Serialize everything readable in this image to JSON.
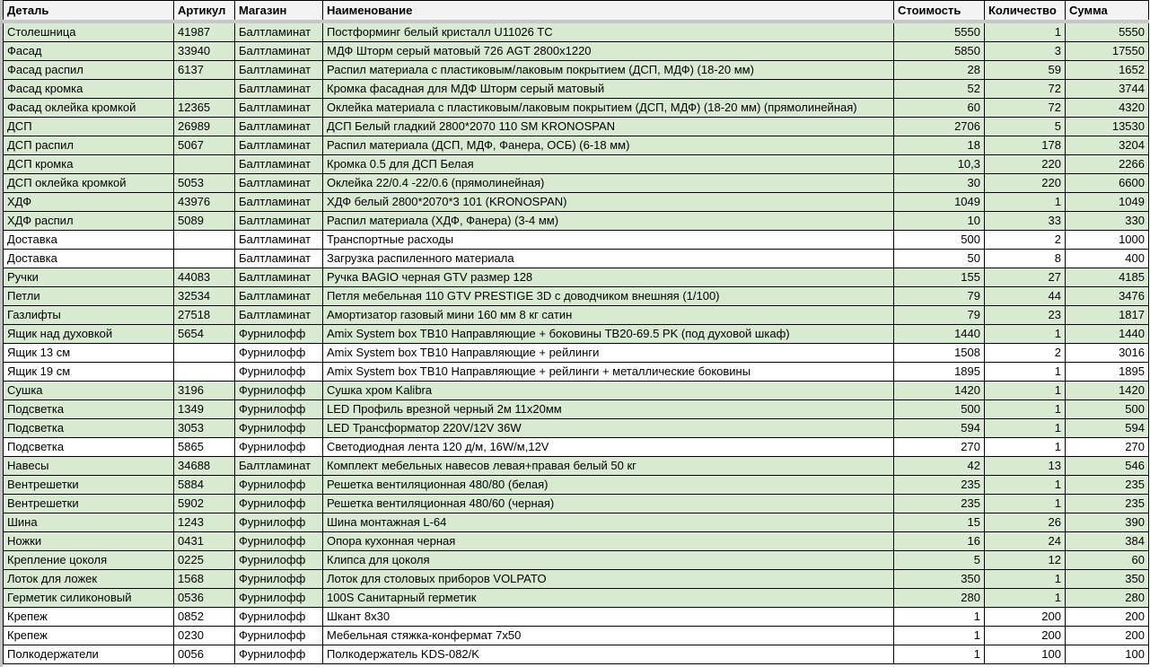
{
  "colors": {
    "highlight": "#d9ead3",
    "header": "#f3f3f3"
  },
  "headers": [
    "Деталь",
    "Артикул",
    "Магазин",
    "Наименование",
    "Стоимость",
    "Количество",
    "Сумма"
  ],
  "rows": [
    {
      "g": true,
      "c": [
        "Столешница",
        "41987",
        "Балтламинат",
        "Постформинг белый кристалл U11026 TC",
        "5550",
        "1",
        "5550"
      ]
    },
    {
      "g": true,
      "c": [
        "Фасад",
        "33940",
        "Балтламинат",
        "МДФ Шторм серый матовый 726 AGT 2800x1220",
        "5850",
        "3",
        "17550"
      ]
    },
    {
      "g": true,
      "c": [
        "Фасад распил",
        "6137",
        "Балтламинат",
        "Распил материала с пластиковым/лаковым покрытием (ДСП, МДФ) (18-20 мм)",
        "28",
        "59",
        "1652"
      ]
    },
    {
      "g": true,
      "c": [
        "Фасад кромка",
        "",
        "Балтламинат",
        "Кромка фасадная для МДФ Шторм серый матовый",
        "52",
        "72",
        "3744"
      ]
    },
    {
      "g": true,
      "c": [
        "Фасад оклейка кромкой",
        "12365",
        "Балтламинат",
        "Оклейка материала с пластиковым/лаковым покрытием (ДСП, МДФ) (18-20 мм) (прямолинейная)",
        "60",
        "72",
        "4320"
      ]
    },
    {
      "g": true,
      "c": [
        "ДСП",
        "26989",
        "Балтламинат",
        "ДСП Белый гладкий 2800*2070 110 SM KRONOSPAN",
        "2706",
        "5",
        "13530"
      ]
    },
    {
      "g": true,
      "c": [
        "ДСП распил",
        "5067",
        "Балтламинат",
        "Распил материала (ДСП, МДФ, Фанера, ОСБ) (6-18 мм)",
        "18",
        "178",
        "3204"
      ]
    },
    {
      "g": true,
      "c": [
        "ДСП кромка",
        "",
        "Балтламинат",
        "Кромка 0.5 для ДСП Белая",
        "10,3",
        "220",
        "2266"
      ]
    },
    {
      "g": true,
      "c": [
        "ДСП оклейка кромкой",
        "5053",
        "Балтламинат",
        "Оклейка 22/0.4 -22/0.6 (прямолинейная)",
        "30",
        "220",
        "6600"
      ]
    },
    {
      "g": true,
      "c": [
        "ХДФ",
        "43976",
        "Балтламинат",
        "ХДФ белый 2800*2070*3 101 (KRONOSPAN)",
        "1049",
        "1",
        "1049"
      ]
    },
    {
      "g": true,
      "c": [
        "ХДФ распил",
        "5089",
        "Балтламинат",
        "Распил материала (ХДФ, Фанера) (3-4 мм)",
        "10",
        "33",
        "330"
      ]
    },
    {
      "g": false,
      "c": [
        "Доставка",
        "",
        "Балтламинат",
        "Транспортные расходы",
        "500",
        "2",
        "1000"
      ]
    },
    {
      "g": false,
      "c": [
        "Доставка",
        "",
        "Балтламинат",
        "Загрузка распиленного материала",
        "50",
        "8",
        "400"
      ]
    },
    {
      "g": true,
      "c": [
        "Ручки",
        "44083",
        "Балтламинат",
        "Ручка BAGIO черная GTV размер 128",
        "155",
        "27",
        "4185"
      ]
    },
    {
      "g": true,
      "c": [
        "Петли",
        "32534",
        "Балтламинат",
        "Петля мебельная 110 GTV PRESTIGE 3D с доводчиком внешняя (1/100)",
        "79",
        "44",
        "3476"
      ]
    },
    {
      "g": true,
      "c": [
        "Газлифты",
        "27518",
        "Балтламинат",
        "Амортизатор газовый мини 160 мм 8 кг сатин",
        "79",
        "23",
        "1817"
      ]
    },
    {
      "g": true,
      "c": [
        "Ящик над духовкой",
        "5654",
        "Фурнилофф",
        "Amix System box TB10 Направляющие + боковины TB20-69.5 PK (под духовой шкаф)",
        "1440",
        "1",
        "1440"
      ]
    },
    {
      "g": false,
      "c": [
        "Ящик 13 см",
        "",
        "Фурнилофф",
        "Amix System box TB10 Направляющие + рейлинги",
        "1508",
        "2",
        "3016"
      ]
    },
    {
      "g": false,
      "c": [
        "Ящик 19 см",
        "",
        "Фурнилофф",
        "Amix System box TB10 Направляющие + рейлинги + металлические боковины",
        "1895",
        "1",
        "1895"
      ]
    },
    {
      "g": true,
      "c": [
        "Сушка",
        "3196",
        "Фурнилофф",
        "Сушка хром Kalibra",
        "1420",
        "1",
        "1420"
      ]
    },
    {
      "g": true,
      "c": [
        "Подсветка",
        "1349",
        "Фурнилофф",
        "LED Профиль врезной черный 2м 11x20мм",
        "500",
        "1",
        "500"
      ]
    },
    {
      "g": true,
      "c": [
        "Подсветка",
        "3053",
        "Фурнилофф",
        "LED Трансформатор 220V/12V 36W",
        "594",
        "1",
        "594"
      ]
    },
    {
      "g": false,
      "c": [
        "Подсветка",
        "5865",
        "Фурнилофф",
        "Светодиодная лента 120 д/м, 16W/м,12V",
        "270",
        "1",
        "270"
      ]
    },
    {
      "g": true,
      "c": [
        "Навесы",
        "34688",
        "Балтламинат",
        "Комплект мебельных навесов левая+правая белый 50 кг",
        "42",
        "13",
        "546"
      ]
    },
    {
      "g": true,
      "c": [
        "Вентрешетки",
        "5884",
        "Фурнилофф",
        "Решетка вентиляционная 480/80 (белая)",
        "235",
        "1",
        "235"
      ]
    },
    {
      "g": true,
      "c": [
        "Вентрешетки",
        "5902",
        "Фурнилофф",
        "Решетка вентиляционная 480/60 (черная)",
        "235",
        "1",
        "235"
      ]
    },
    {
      "g": true,
      "c": [
        "Шина",
        "1243",
        "Фурнилофф",
        "Шина монтажная L-64",
        "15",
        "26",
        "390"
      ]
    },
    {
      "g": true,
      "c": [
        "Ножки",
        "0431",
        "Фурнилофф",
        "Опора кухонная черная",
        "16",
        "24",
        "384"
      ]
    },
    {
      "g": true,
      "c": [
        "Крепление цоколя",
        "0225",
        "Фурнилофф",
        "Клипса для цоколя",
        "5",
        "12",
        "60"
      ]
    },
    {
      "g": true,
      "c": [
        "Лоток для ложек",
        "1568",
        "Фурнилофф",
        "Лоток для столовых приборов VOLPATO",
        "350",
        "1",
        "350"
      ]
    },
    {
      "g": true,
      "c": [
        "Герметик силиконовый",
        "0536",
        "Фурнилофф",
        "100S Санитарный герметик",
        "280",
        "1",
        "280"
      ]
    },
    {
      "g": false,
      "c": [
        "Крепеж",
        "0852",
        "Фурнилофф",
        "Шкант 8x30",
        "1",
        "200",
        "200"
      ]
    },
    {
      "g": false,
      "c": [
        "Крепеж",
        "0230",
        "Фурнилофф",
        "Мебельная стяжка-конфермат 7x50",
        "1",
        "200",
        "200"
      ]
    },
    {
      "g": false,
      "c": [
        "Полкодержатели",
        "0056",
        "Фурнилофф",
        "Полкодержатель KDS-082/K",
        "1",
        "100",
        "100"
      ]
    }
  ]
}
